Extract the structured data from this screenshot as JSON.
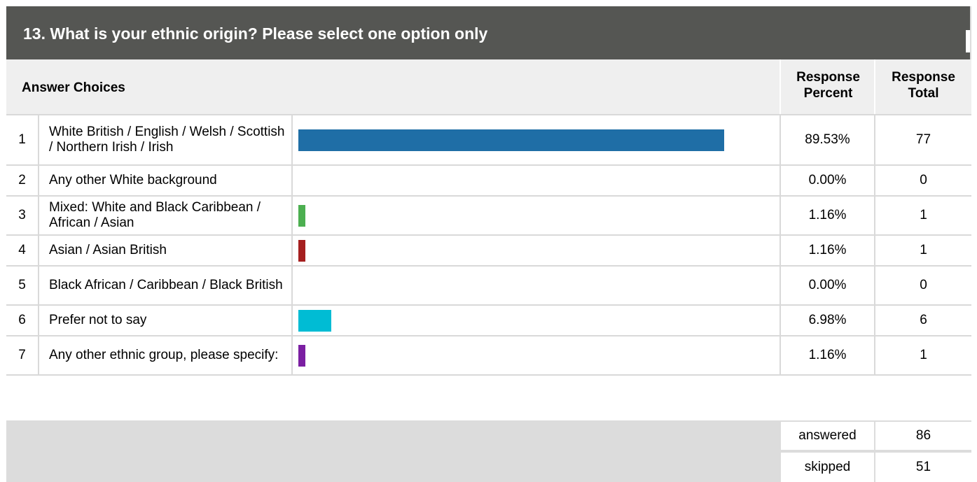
{
  "title": "13. What is your ethnic origin? Please select one option only",
  "header": {
    "answer_choices": "Answer Choices",
    "response_percent_1": "Response",
    "response_percent_2": "Percent",
    "response_total_1": "Response",
    "response_total_2": "Total"
  },
  "rows": [
    {
      "num": "1",
      "label": "White British / English / Welsh / Scottish / Northern Irish / Irish",
      "percent": "89.53%",
      "total": "77",
      "color": "#1f6ea6"
    },
    {
      "num": "2",
      "label": "Any other White background",
      "percent": "0.00%",
      "total": "0",
      "color": "#888888"
    },
    {
      "num": "3",
      "label": "Mixed: White and Black Caribbean / African / Asian",
      "percent": "1.16%",
      "total": "1",
      "color": "#4caf50"
    },
    {
      "num": "4",
      "label": "Asian / Asian British",
      "percent": "1.16%",
      "total": "1",
      "color": "#a51f1f"
    },
    {
      "num": "5",
      "label": "Black African / Caribbean / Black British",
      "percent": "0.00%",
      "total": "0",
      "color": "#888888"
    },
    {
      "num": "6",
      "label": "Prefer not to say",
      "percent": "6.98%",
      "total": "6",
      "color": "#00bcd4"
    },
    {
      "num": "7",
      "label": "Any other ethnic group, please specify:",
      "percent": "1.16%",
      "total": "1",
      "color": "#7b1fa2"
    }
  ],
  "footer": {
    "answered_label": "answered",
    "answered_value": "86",
    "skipped_label": "skipped",
    "skipped_value": "51"
  },
  "chart_data": {
    "type": "bar",
    "orientation": "horizontal",
    "categories": [
      "White British / English / Welsh / Scottish / Northern Irish / Irish",
      "Any other White background",
      "Mixed: White and Black Caribbean / African / Asian",
      "Asian / Asian British",
      "Black African / Caribbean / Black British",
      "Prefer not to say",
      "Any other ethnic group, please specify:"
    ],
    "values": [
      89.53,
      0.0,
      1.16,
      1.16,
      0.0,
      6.98,
      1.16
    ],
    "totals": [
      77,
      0,
      1,
      1,
      0,
      6,
      1
    ],
    "colors": [
      "#1f6ea6",
      "#888888",
      "#4caf50",
      "#a51f1f",
      "#888888",
      "#00bcd4",
      "#7b1fa2"
    ],
    "title": "13. What is your ethnic origin? Please select one option only",
    "xlim": [
      0,
      100
    ],
    "grid": false
  }
}
